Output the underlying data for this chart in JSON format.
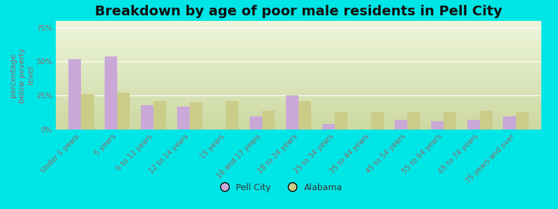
{
  "title": "Breakdown by age of poor male residents in Pell City",
  "ylabel": "percentage\nbelow poverty\nlevel",
  "categories": [
    "Under 5 years",
    "5 years",
    "6 to 11 years",
    "12 to 14 years",
    "15 years",
    "16 and 17 years",
    "18 to 24 years",
    "25 to 34 years",
    "35 to 44 years",
    "45 to 54 years",
    "55 to 64 years",
    "65 to 74 years",
    "75 years and over"
  ],
  "pell_city": [
    52,
    54,
    18,
    17,
    0,
    10,
    25,
    4,
    0,
    7,
    6,
    7,
    10
  ],
  "alabama": [
    26,
    27,
    21,
    20,
    21,
    14,
    21,
    13,
    13,
    13,
    13,
    14,
    13
  ],
  "pell_city_color": "#c9a8d8",
  "alabama_color": "#cbcc88",
  "bg_figure": "#00e5e5",
  "bg_plot_top": "#ccd8a0",
  "bg_plot_bottom": "#eef5dc",
  "yticks": [
    0,
    25,
    50,
    75
  ],
  "ytick_labels": [
    "0%",
    "25%",
    "50%",
    "75%"
  ],
  "ylim": [
    0,
    80
  ],
  "title_fontsize": 14,
  "axis_label_fontsize": 8,
  "tick_fontsize": 7.5,
  "legend_fontsize": 9,
  "bar_width": 0.35,
  "tick_color": "#996666",
  "grid_color": "#ffffff"
}
